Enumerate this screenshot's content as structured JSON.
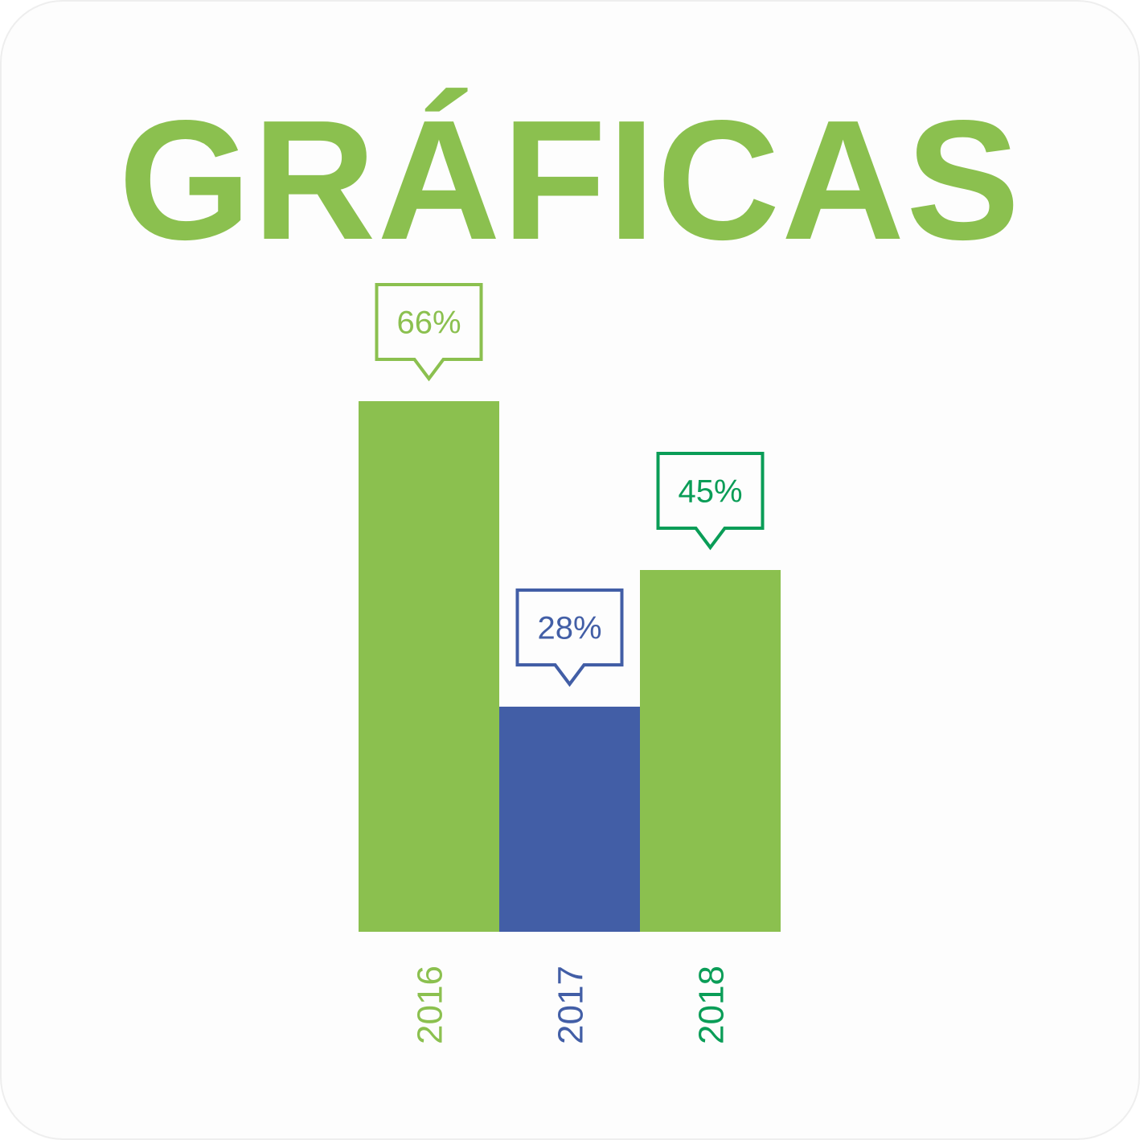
{
  "title": "GRÁFICAS",
  "colors": {
    "title": "#8BC04F",
    "bar_green": "#8BC04F",
    "bar_blue": "#425EA6",
    "dark_green": "#0A9D57"
  },
  "chart_data": {
    "type": "bar",
    "categories": [
      "2016",
      "2017",
      "2018"
    ],
    "values": [
      66,
      28,
      45
    ],
    "value_labels": [
      "66%",
      "28%",
      "45%"
    ],
    "bar_colors": [
      "#8BC04F",
      "#425EA6",
      "#8BC04F"
    ],
    "label_colors": [
      "#8BC04F",
      "#425EA6",
      "#0A9D57"
    ],
    "title": "GRÁFICAS",
    "xlabel": "",
    "ylabel": "",
    "ylim": [
      0,
      66
    ],
    "grid": false,
    "legend": "none"
  }
}
